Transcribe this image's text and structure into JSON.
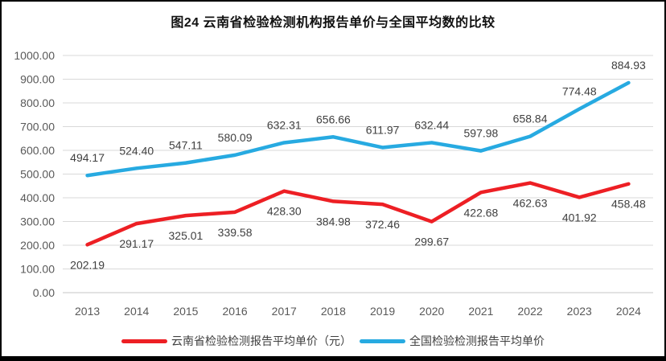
{
  "chart_data": {
    "type": "line",
    "title": "图24 云南省检验检测机构报告单价与全国平均数的比较",
    "categories": [
      "2013",
      "2014",
      "2015",
      "2016",
      "2017",
      "2018",
      "2019",
      "2020",
      "2021",
      "2022",
      "2023",
      "2024"
    ],
    "series": [
      {
        "name": "云南省检验检测报告平均单价（元）",
        "color": "#ED1F24",
        "label_position": "below",
        "values": [
          202.19,
          291.17,
          325.01,
          339.58,
          428.3,
          384.98,
          372.46,
          299.67,
          422.68,
          462.63,
          401.92,
          458.48
        ]
      },
      {
        "name": "全国检验检测报告平均单价",
        "color": "#27AAE1",
        "label_position": "above",
        "values": [
          494.17,
          524.4,
          547.11,
          580.09,
          632.31,
          656.66,
          611.97,
          632.44,
          597.98,
          658.84,
          774.48,
          884.93
        ]
      }
    ],
    "ylim": [
      0,
      1000
    ],
    "ytick_step": 100,
    "yticks": [
      "1000.00",
      "900.00",
      "800.00",
      "700.00",
      "600.00",
      "500.00",
      "400.00",
      "300.00",
      "200.00",
      "100.00",
      "0.00"
    ],
    "grid": true,
    "legend_position": "bottom",
    "colors": {
      "grid_line": "#D9D9D9",
      "axis_line": "#C6C6C6",
      "axis_text": "#595959",
      "data_label_text": "#3F3F3F"
    }
  }
}
